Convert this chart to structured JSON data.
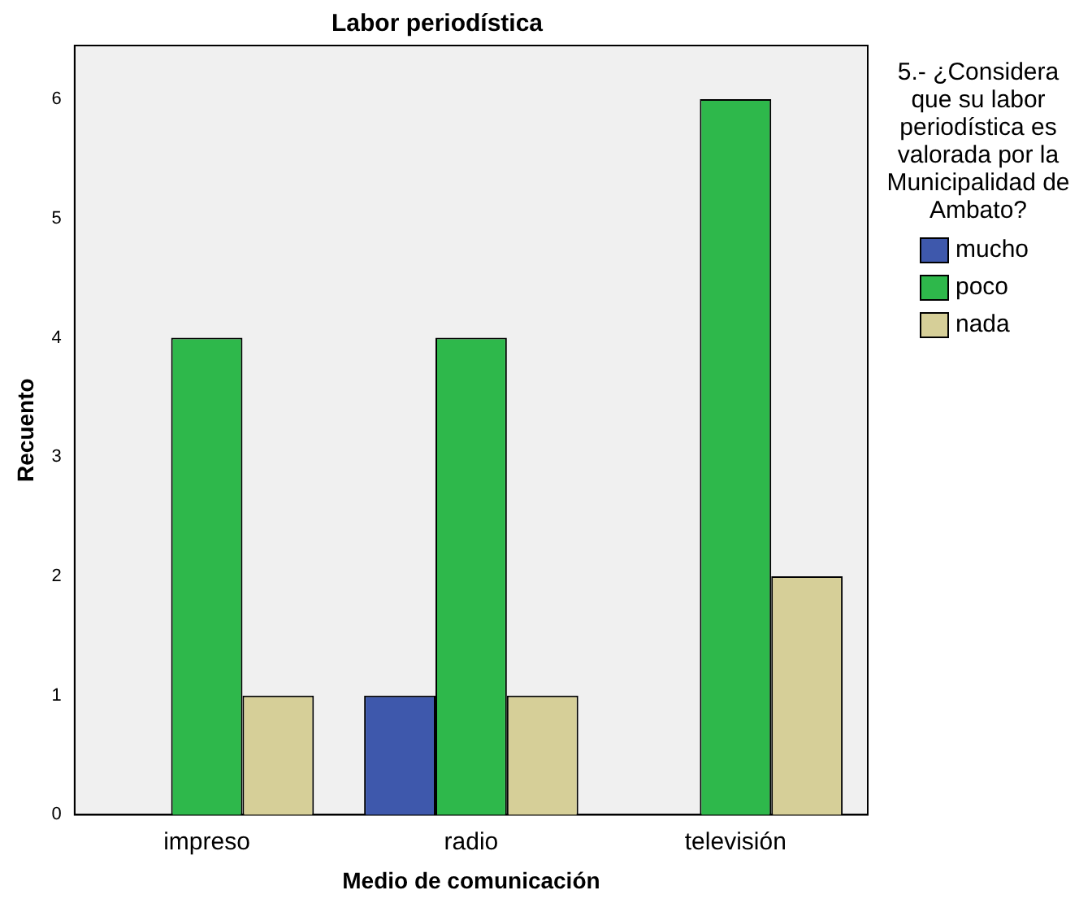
{
  "chart_data": {
    "type": "bar",
    "title": "Labor periodística",
    "xlabel": "Medio de comunicación",
    "ylabel": "Recuento",
    "legend_title": "5.- ¿Considera que su labor periodística es valorada por la Municipalidad de Ambato?",
    "categories": [
      "impreso",
      "radio",
      "televisión"
    ],
    "series": [
      {
        "name": "mucho",
        "color": "#3e58ac",
        "values": [
          null,
          1,
          null
        ]
      },
      {
        "name": "poco",
        "color": "#2eb84b",
        "values": [
          4,
          4,
          6
        ]
      },
      {
        "name": "nada",
        "color": "#d6cf98",
        "values": [
          1,
          1,
          2
        ]
      }
    ],
    "ylim": [
      0,
      6.45
    ],
    "yticks": [
      0,
      1,
      2,
      3,
      4,
      5,
      6
    ],
    "grid": false,
    "legend": "right"
  }
}
